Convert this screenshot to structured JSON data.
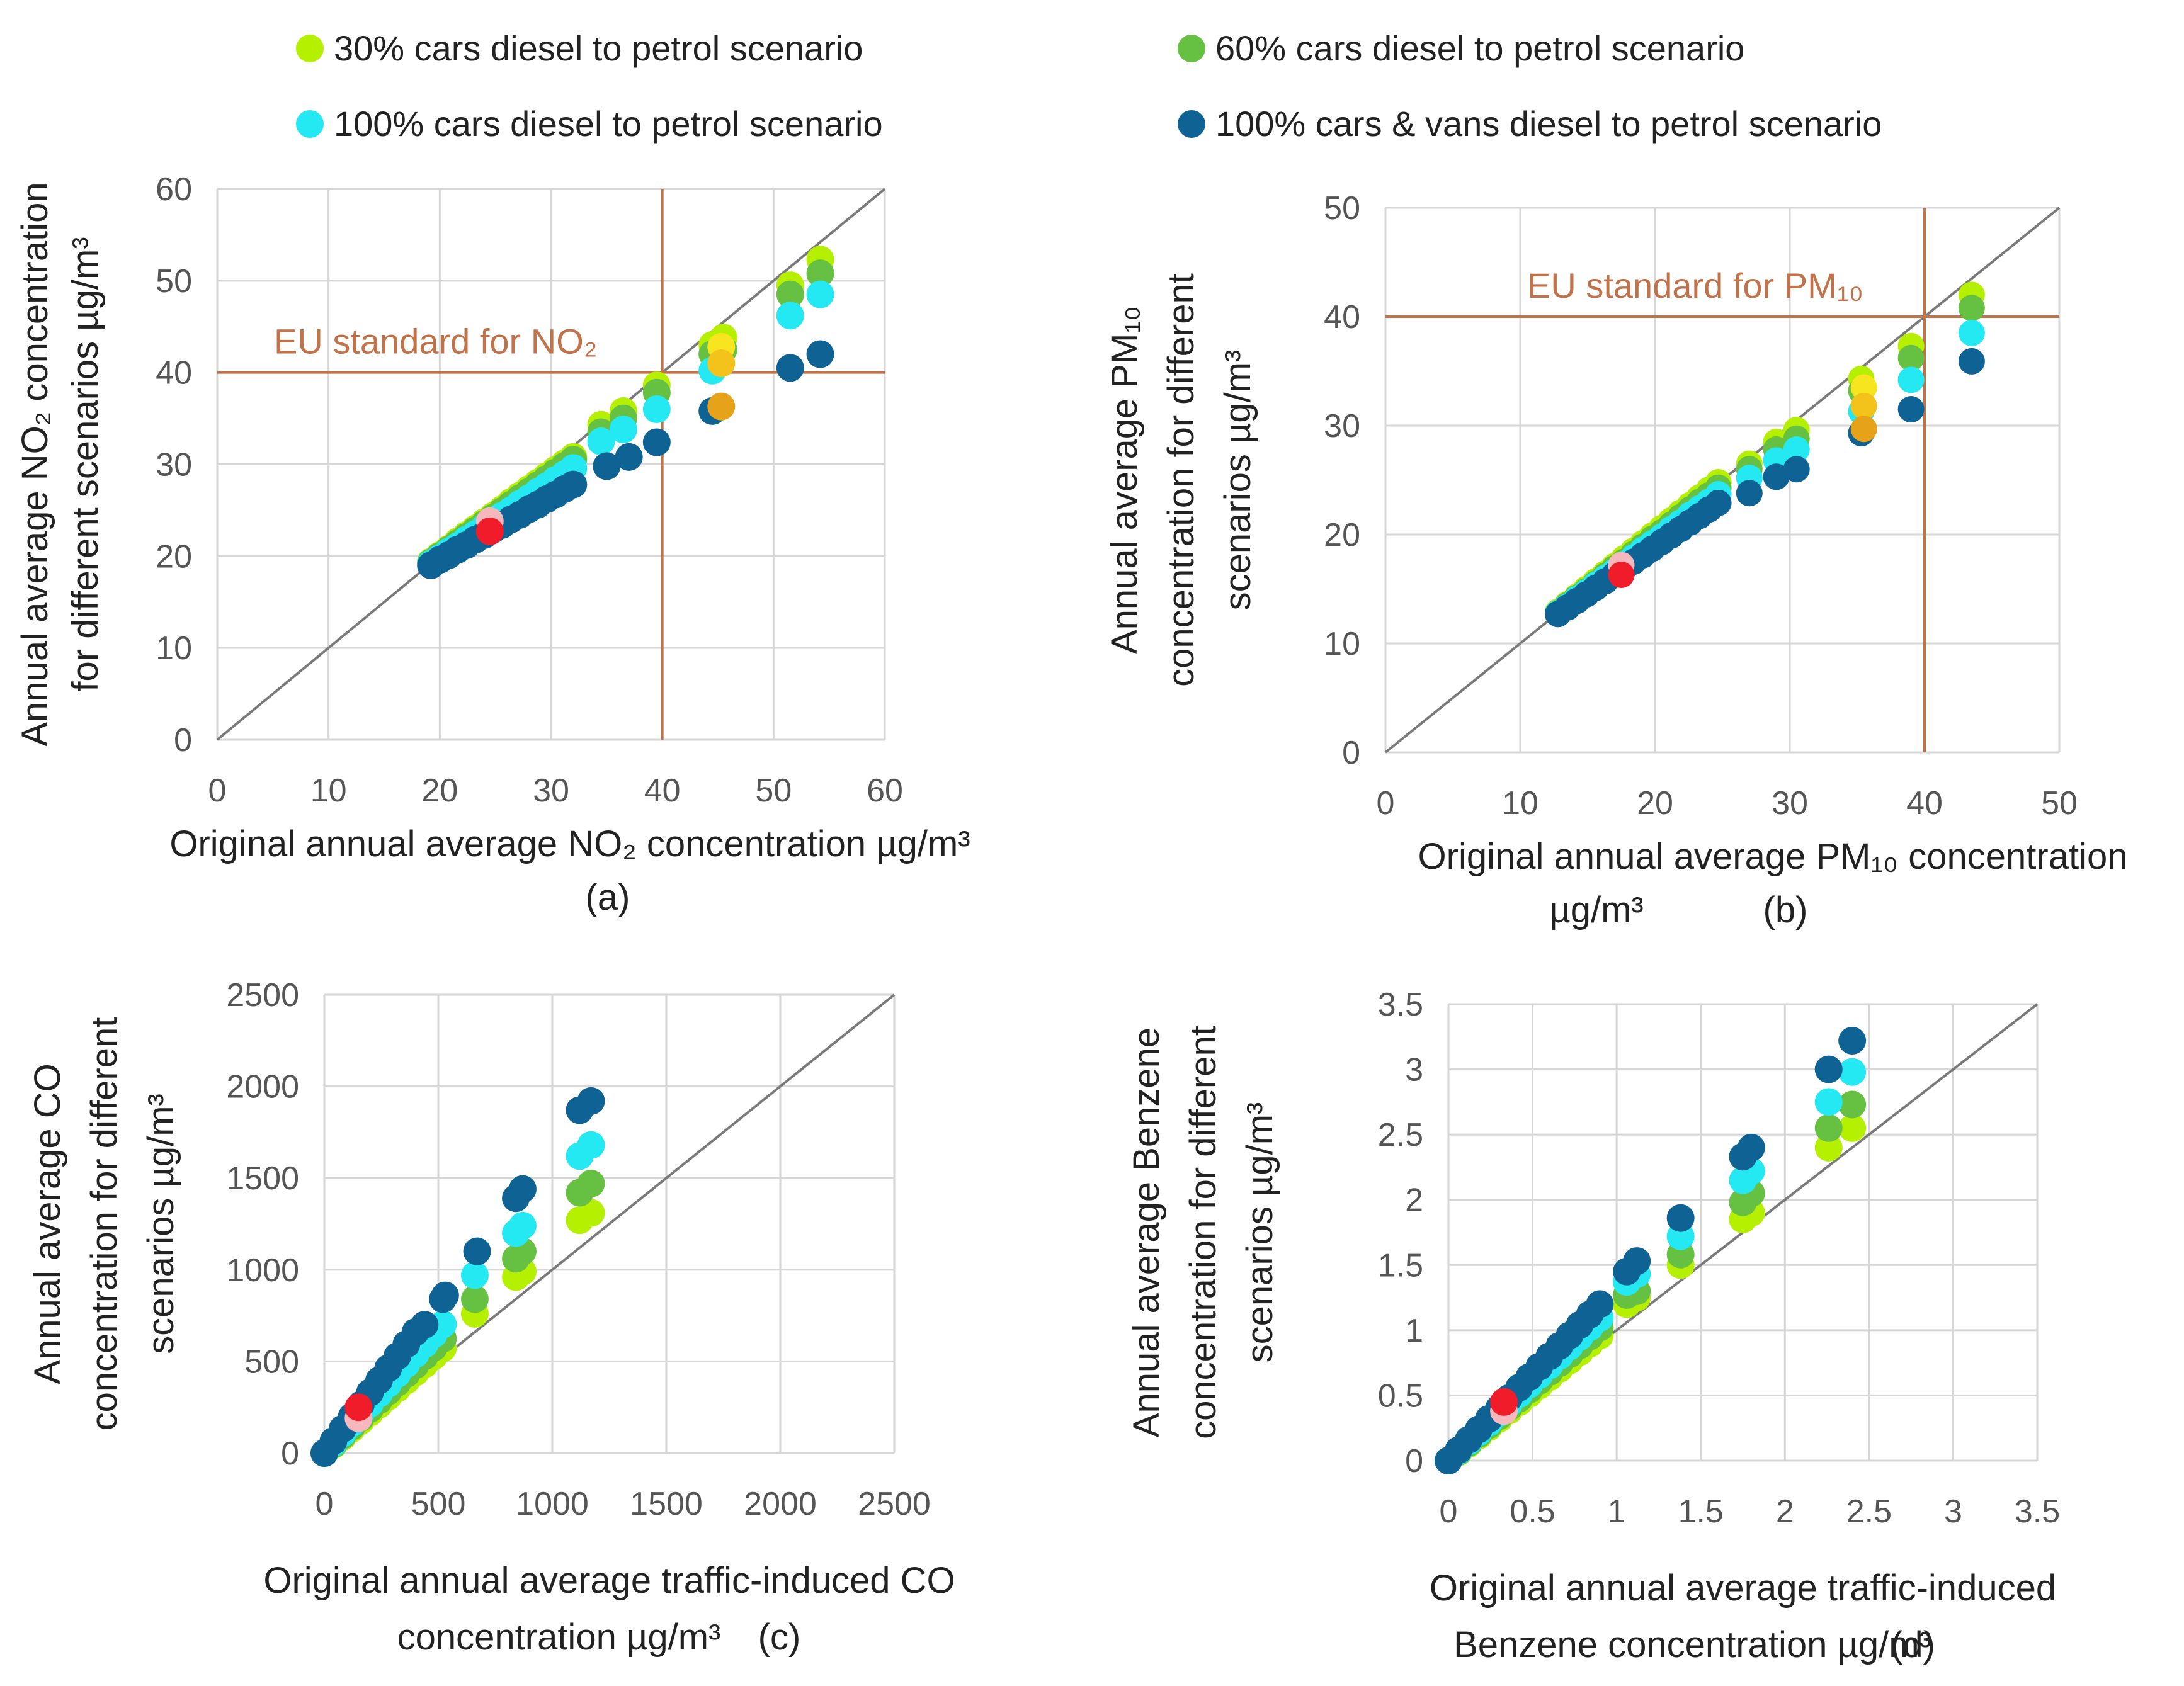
{
  "legend": [
    {
      "label": "30% cars diesel to petrol scenario",
      "color": "#b5f000"
    },
    {
      "label": "60% cars diesel to petrol scenario",
      "color": "#66c142"
    },
    {
      "label": "100% cars diesel to petrol scenario",
      "color": "#24e8f2"
    },
    {
      "label": "100% cars & vans diesel to petrol scenario",
      "color": "#0f6394"
    }
  ],
  "colors": {
    "s30": "#b5f000",
    "s60": "#66c142",
    "s100": "#24e8f2",
    "s100v": "#0f6394",
    "standard_line": "#c0734a",
    "standard_text": "#c0734a",
    "diagonal": "#7a7a7a",
    "grid": "#d6d6d6",
    "highlight_red": "#f01c2a",
    "highlight_pink": "#f6b7bd",
    "highlight_yellow": "#f7e51f",
    "highlight_gold": "#f3c21b",
    "highlight_orange": "#e6a31a"
  },
  "chart_data": [
    {
      "id": "a",
      "type": "scatter",
      "panel_label": "(a)",
      "xlabel_line1": "Original annual average NO₂ concentration µg/m³",
      "ylabel_line1": "Annual average NO₂ concentration",
      "ylabel_line2": "for different scenarios µg/m³",
      "xlim": [
        0,
        60
      ],
      "ylim": [
        0,
        60
      ],
      "xticks": [
        0,
        10,
        20,
        30,
        40,
        50,
        60
      ],
      "yticks": [
        0,
        10,
        20,
        30,
        40,
        50,
        60
      ],
      "standard": {
        "value": 40,
        "label": "EU standard for NO₂"
      },
      "series": [
        {
          "name": "30% cars diesel to petrol scenario",
          "factor": 0.97,
          "x": [
            19.2,
            20,
            20.8,
            21.6,
            22.4,
            23.2,
            24,
            24.8,
            25.6,
            26.4,
            27.2,
            28,
            28.8,
            29.6,
            30.4,
            31.2,
            32,
            34.5,
            36.5,
            39.5,
            44.5,
            45.5,
            51.5,
            54.2
          ],
          "y": [
            19.4,
            20.1,
            20.8,
            21.6,
            22.3,
            23.0,
            23.7,
            24.4,
            25.1,
            25.9,
            26.6,
            27.3,
            28.0,
            28.7,
            29.4,
            30.1,
            30.8,
            34.3,
            35.8,
            38.6,
            43.0,
            43.8,
            49.5,
            52.3
          ]
        },
        {
          "name": "60% cars diesel to petrol scenario",
          "x": [
            19.2,
            20,
            20.8,
            21.6,
            22.4,
            23.2,
            24,
            24.8,
            25.6,
            26.4,
            27.2,
            28,
            28.8,
            29.6,
            30.4,
            31.2,
            32,
            34.5,
            36.5,
            39.5,
            44.5,
            45.5,
            51.5,
            54.2
          ],
          "y": [
            19.3,
            20.0,
            20.7,
            21.4,
            22.1,
            22.8,
            23.5,
            24.2,
            24.9,
            25.6,
            26.3,
            27.0,
            27.7,
            28.4,
            29.1,
            29.8,
            30.5,
            33.5,
            35.0,
            37.8,
            42.0,
            42.5,
            48.5,
            50.8
          ]
        },
        {
          "name": "100% cars diesel to petrol scenario",
          "x": [
            19.2,
            20,
            20.8,
            21.6,
            22.4,
            23.2,
            24,
            24.8,
            25.6,
            26.4,
            27.2,
            28,
            28.8,
            29.6,
            30.4,
            31.2,
            32,
            34.5,
            36.5,
            39.5,
            44.5,
            51.5,
            54.2
          ],
          "y": [
            19.2,
            19.8,
            20.5,
            21.1,
            21.8,
            22.4,
            23.1,
            23.7,
            24.4,
            25.0,
            25.7,
            26.3,
            27.0,
            27.6,
            28.3,
            28.9,
            29.6,
            32.5,
            33.8,
            36.0,
            40.2,
            46.2,
            48.5
          ]
        },
        {
          "name": "100% cars & vans diesel to petrol scenario",
          "x": [
            19.2,
            20,
            20.8,
            21.6,
            22.4,
            23.2,
            24,
            24.8,
            25.6,
            26.4,
            27.2,
            28,
            28.8,
            29.6,
            30.4,
            31.2,
            32,
            35,
            37,
            39.5,
            44.5,
            51.5,
            54.2
          ],
          "y": [
            19.0,
            19.6,
            20.1,
            20.7,
            21.2,
            21.8,
            22.3,
            22.9,
            23.4,
            24.0,
            24.5,
            25.1,
            25.6,
            26.2,
            26.7,
            27.3,
            27.8,
            29.8,
            30.8,
            32.4,
            35.8,
            40.5,
            42.0
          ]
        }
      ],
      "highlights": [
        {
          "x": 24.5,
          "y": 23.8,
          "color": "pink"
        },
        {
          "x": 24.5,
          "y": 22.7,
          "color": "red"
        },
        {
          "x": 45.3,
          "y": 42.8,
          "color": "yellow"
        },
        {
          "x": 45.3,
          "y": 41.0,
          "color": "gold"
        },
        {
          "x": 45.3,
          "y": 36.3,
          "color": "orange"
        }
      ]
    },
    {
      "id": "b",
      "type": "scatter",
      "panel_label": "(b)",
      "xlabel_line1": "Original annual average PM₁₀ concentration",
      "xlabel_line2": "µg/m³",
      "ylabel_line1": "Annual average PM₁₀",
      "ylabel_line2": "concentration for different",
      "ylabel_line3": "scenarios µg/m³",
      "xlim": [
        0,
        50
      ],
      "ylim": [
        0,
        50
      ],
      "xticks": [
        0,
        10,
        20,
        30,
        40,
        50
      ],
      "yticks": [
        0,
        10,
        20,
        30,
        40,
        50
      ],
      "standard": {
        "value": 40,
        "label": "EU standard for PM₁₀"
      },
      "series": [
        {
          "name": "30% cars diesel to petrol scenario",
          "x": [
            12.8,
            13.5,
            14.2,
            14.9,
            15.6,
            16.3,
            17,
            17.7,
            18.4,
            19.1,
            19.8,
            20.5,
            21.2,
            21.9,
            22.6,
            23.3,
            24,
            24.7,
            27,
            29,
            30.5,
            35.3,
            39,
            43.5
          ],
          "y": [
            12.9,
            13.6,
            14.3,
            15.0,
            15.7,
            16.4,
            17.1,
            17.8,
            18.5,
            19.2,
            19.9,
            20.6,
            21.3,
            22.0,
            22.7,
            23.4,
            24.1,
            24.8,
            26.5,
            28.5,
            29.6,
            34.3,
            37.3,
            42.0
          ]
        },
        {
          "name": "60% cars diesel to petrol scenario",
          "x": [
            12.8,
            13.5,
            14.2,
            14.9,
            15.6,
            16.3,
            17,
            17.7,
            18.4,
            19.1,
            19.8,
            20.5,
            21.2,
            21.9,
            22.6,
            23.3,
            24,
            24.7,
            27,
            29,
            30.5,
            35.3,
            39,
            43.5
          ],
          "y": [
            12.8,
            13.5,
            14.2,
            14.8,
            15.5,
            16.2,
            16.9,
            17.5,
            18.2,
            18.9,
            19.6,
            20.2,
            20.9,
            21.6,
            22.3,
            23.0,
            23.6,
            24.3,
            26.0,
            27.8,
            28.8,
            33.2,
            36.2,
            40.8
          ]
        },
        {
          "name": "100% cars diesel to petrol scenario",
          "x": [
            12.8,
            13.5,
            14.2,
            14.9,
            15.6,
            16.3,
            17,
            17.7,
            18.4,
            19.1,
            19.8,
            20.5,
            21.2,
            21.9,
            22.6,
            23.3,
            24,
            24.7,
            27,
            29,
            30.5,
            35.3,
            39,
            43.5
          ],
          "y": [
            12.8,
            13.4,
            14.1,
            14.7,
            15.4,
            16.0,
            16.6,
            17.3,
            17.9,
            18.6,
            19.2,
            19.8,
            20.5,
            21.1,
            21.8,
            22.4,
            23.0,
            23.7,
            25.2,
            26.8,
            27.8,
            31.3,
            34.2,
            38.5
          ]
        },
        {
          "name": "100% cars & vans diesel to petrol scenario",
          "x": [
            12.8,
            13.5,
            14.2,
            14.9,
            15.6,
            16.3,
            17,
            17.7,
            18.4,
            19.1,
            19.8,
            20.5,
            21.2,
            21.9,
            22.6,
            23.3,
            24,
            24.7,
            27,
            29,
            30.5,
            35.3,
            39,
            43.5
          ],
          "y": [
            12.7,
            13.3,
            13.9,
            14.5,
            15.1,
            15.7,
            16.3,
            16.9,
            17.5,
            18.1,
            18.7,
            19.3,
            19.9,
            20.5,
            21.1,
            21.7,
            22.3,
            22.9,
            23.8,
            25.3,
            26.0,
            29.3,
            31.5,
            35.9
          ]
        }
      ],
      "highlights": [
        {
          "x": 17.5,
          "y": 17.2,
          "color": "pink"
        },
        {
          "x": 17.5,
          "y": 16.3,
          "color": "red"
        },
        {
          "x": 35.5,
          "y": 33.5,
          "color": "yellow"
        },
        {
          "x": 35.5,
          "y": 31.8,
          "color": "gold"
        },
        {
          "x": 35.5,
          "y": 29.7,
          "color": "orange"
        }
      ]
    },
    {
      "id": "c",
      "type": "scatter",
      "panel_label": "(c)",
      "xlabel_line1": "Original annual average traffic-induced CO",
      "xlabel_line2": "concentration µg/m³",
      "ylabel_line1": "Annual average CO",
      "ylabel_line2": "concentration for different",
      "ylabel_line3": "scenarios µg/m³",
      "xlim": [
        0,
        2500
      ],
      "ylim": [
        0,
        2500
      ],
      "xticks": [
        0,
        500,
        1000,
        1500,
        2000,
        2500
      ],
      "yticks": [
        0,
        500,
        1000,
        1500,
        2000,
        2500
      ],
      "series": [
        {
          "name": "30% cars diesel to petrol scenario",
          "x": [
            0,
            40,
            80,
            120,
            160,
            200,
            240,
            280,
            320,
            360,
            400,
            440,
            480,
            520,
            660,
            840,
            870,
            1120,
            1170
          ],
          "y": [
            0,
            44,
            88,
            132,
            176,
            220,
            264,
            308,
            352,
            396,
            440,
            484,
            528,
            572,
            760,
            960,
            990,
            1270,
            1310
          ]
        },
        {
          "name": "60% cars diesel to petrol scenario",
          "x": [
            0,
            40,
            80,
            120,
            160,
            200,
            240,
            280,
            320,
            360,
            400,
            440,
            480,
            520,
            660,
            840,
            870,
            1120,
            1170
          ],
          "y": [
            0,
            48,
            96,
            144,
            192,
            240,
            288,
            336,
            384,
            432,
            480,
            528,
            576,
            624,
            840,
            1060,
            1100,
            1420,
            1470
          ]
        },
        {
          "name": "100% cars diesel to petrol scenario",
          "x": [
            0,
            40,
            80,
            120,
            160,
            200,
            240,
            280,
            320,
            360,
            400,
            440,
            480,
            520,
            660,
            840,
            870,
            1120,
            1170
          ],
          "y": [
            0,
            54,
            108,
            162,
            216,
            270,
            324,
            378,
            432,
            486,
            540,
            594,
            648,
            702,
            970,
            1200,
            1240,
            1620,
            1680
          ]
        },
        {
          "name": "100% cars & vans diesel to petrol scenario",
          "x": [
            0,
            40,
            80,
            120,
            160,
            200,
            240,
            280,
            320,
            360,
            400,
            440,
            520,
            530,
            670,
            840,
            870,
            1120,
            1170
          ],
          "y": [
            0,
            66,
            132,
            198,
            264,
            330,
            396,
            462,
            528,
            594,
            660,
            700,
            840,
            860,
            1100,
            1390,
            1440,
            1870,
            1920
          ]
        }
      ],
      "highlights": [
        {
          "x": 150,
          "y": 190,
          "color": "pink"
        },
        {
          "x": 150,
          "y": 250,
          "color": "red"
        }
      ]
    },
    {
      "id": "d",
      "type": "scatter",
      "panel_label": "(d)",
      "xlabel_line1": "Original annual average traffic-induced",
      "xlabel_line2": "Benzene concentration µg/m³",
      "ylabel_line1": "Annual average Benzene",
      "ylabel_line2": "concentration for different",
      "ylabel_line3": "scenarios µg/m³",
      "xlim": [
        0,
        3.5
      ],
      "ylim": [
        0,
        3.5
      ],
      "xticks": [
        0,
        0.5,
        1,
        1.5,
        2,
        2.5,
        3,
        3.5
      ],
      "yticks": [
        0,
        0.5,
        1,
        1.5,
        2,
        2.5,
        3,
        3.5
      ],
      "series": [
        {
          "name": "30% cars diesel to petrol scenario",
          "x": [
            0,
            0.06,
            0.12,
            0.18,
            0.24,
            0.3,
            0.36,
            0.42,
            0.48,
            0.54,
            0.6,
            0.66,
            0.72,
            0.78,
            0.84,
            0.9,
            1.06,
            1.12,
            1.38,
            1.75,
            1.8,
            2.26,
            2.4
          ],
          "y": [
            0,
            0.064,
            0.128,
            0.192,
            0.256,
            0.32,
            0.384,
            0.448,
            0.512,
            0.576,
            0.64,
            0.704,
            0.768,
            0.832,
            0.896,
            0.96,
            1.2,
            1.25,
            1.5,
            1.85,
            1.9,
            2.4,
            2.55
          ]
        },
        {
          "name": "60% cars diesel to petrol scenario",
          "x": [
            0,
            0.06,
            0.12,
            0.18,
            0.24,
            0.3,
            0.36,
            0.42,
            0.48,
            0.54,
            0.6,
            0.66,
            0.72,
            0.78,
            0.84,
            0.9,
            1.06,
            1.12,
            1.38,
            1.75,
            1.8,
            2.26,
            2.4
          ],
          "y": [
            0,
            0.068,
            0.136,
            0.204,
            0.272,
            0.34,
            0.408,
            0.476,
            0.544,
            0.612,
            0.68,
            0.748,
            0.816,
            0.884,
            0.952,
            1.02,
            1.27,
            1.3,
            1.58,
            1.98,
            2.05,
            2.55,
            2.73
          ]
        },
        {
          "name": "100% cars diesel to petrol scenario",
          "x": [
            0,
            0.06,
            0.12,
            0.18,
            0.24,
            0.3,
            0.36,
            0.42,
            0.48,
            0.54,
            0.6,
            0.66,
            0.72,
            0.78,
            0.84,
            0.9,
            1.06,
            1.12,
            1.38,
            1.75,
            1.8,
            2.26,
            2.4
          ],
          "y": [
            0,
            0.073,
            0.146,
            0.219,
            0.292,
            0.365,
            0.438,
            0.511,
            0.584,
            0.657,
            0.73,
            0.803,
            0.876,
            0.949,
            1.022,
            1.095,
            1.37,
            1.43,
            1.72,
            2.15,
            2.22,
            2.75,
            2.98
          ]
        },
        {
          "name": "100% cars & vans diesel to petrol scenario",
          "x": [
            0,
            0.06,
            0.12,
            0.18,
            0.24,
            0.3,
            0.36,
            0.42,
            0.48,
            0.54,
            0.6,
            0.66,
            0.72,
            0.78,
            0.84,
            0.9,
            1.06,
            1.12,
            1.38,
            1.75,
            1.8,
            2.26,
            2.4
          ],
          "y": [
            0,
            0.08,
            0.16,
            0.24,
            0.32,
            0.4,
            0.48,
            0.56,
            0.64,
            0.72,
            0.8,
            0.88,
            0.96,
            1.04,
            1.12,
            1.2,
            1.45,
            1.53,
            1.86,
            2.33,
            2.4,
            3.0,
            3.22
          ]
        }
      ],
      "highlights": [
        {
          "x": 0.33,
          "y": 0.38,
          "color": "pink"
        },
        {
          "x": 0.33,
          "y": 0.45,
          "color": "red"
        }
      ]
    }
  ]
}
